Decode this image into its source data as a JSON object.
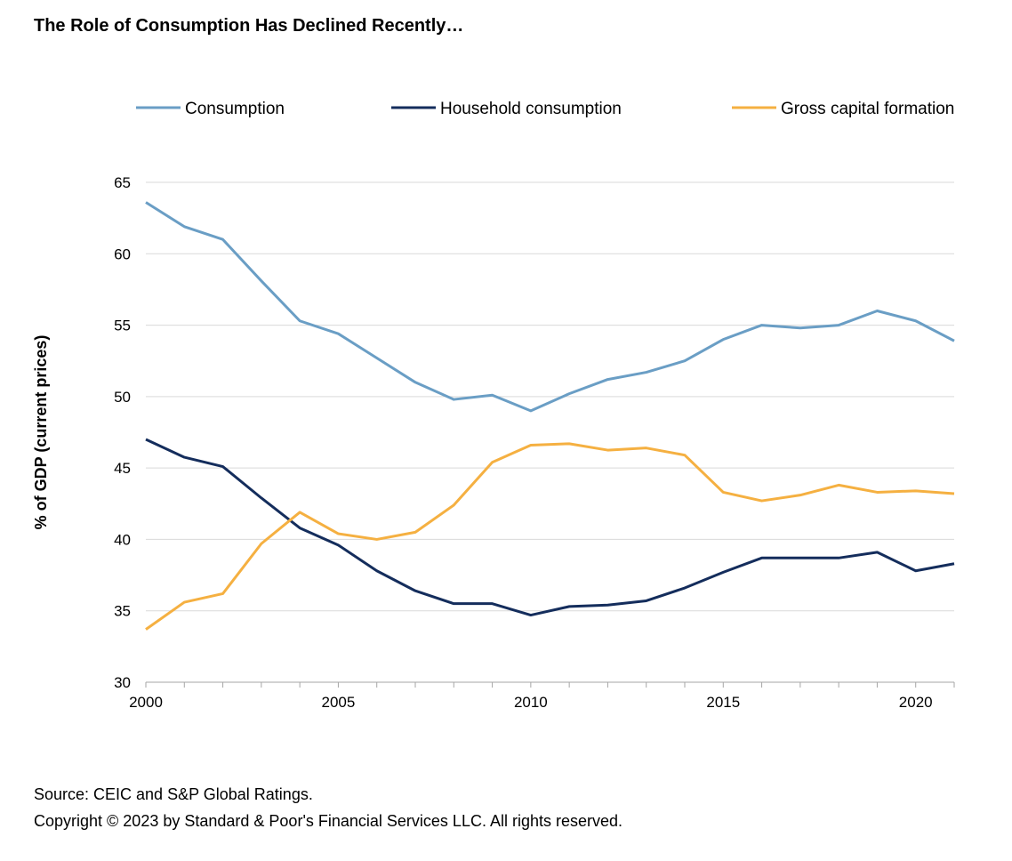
{
  "title": "The Role of Consumption Has Declined Recently…",
  "footer": {
    "source": "Source: CEIC and S&P Global Ratings.",
    "copyright": "Copyright © 2023 by Standard & Poor's Financial Services LLC. All rights reserved."
  },
  "chart_data": {
    "type": "line",
    "title": "The Role of Consumption Has Declined Recently…",
    "xlabel": "",
    "ylabel": "% of GDP (current prices)",
    "ylim": [
      30,
      65
    ],
    "xlim": [
      2000,
      2021
    ],
    "yticks": [
      30,
      35,
      40,
      45,
      50,
      55,
      60,
      65
    ],
    "xticks": [
      2000,
      2005,
      2010,
      2015,
      2020
    ],
    "grid": true,
    "legend": "top",
    "x": [
      2000,
      2001,
      2002,
      2003,
      2004,
      2005,
      2006,
      2007,
      2008,
      2009,
      2010,
      2011,
      2012,
      2013,
      2014,
      2015,
      2016,
      2017,
      2018,
      2019,
      2020,
      2021
    ],
    "series": [
      {
        "name": "Consumption",
        "color": "#6a9ec5",
        "values": [
          63.6,
          61.9,
          61.0,
          58.1,
          55.3,
          54.4,
          52.7,
          51.0,
          49.8,
          50.1,
          49.0,
          50.2,
          51.2,
          51.7,
          52.5,
          54.0,
          55.0,
          54.8,
          55.0,
          56.0,
          55.3,
          53.9
        ]
      },
      {
        "name": "Household consumption",
        "color": "#142d5c",
        "values": [
          47.0,
          45.75,
          45.1,
          42.9,
          40.8,
          39.6,
          37.8,
          36.4,
          35.5,
          35.5,
          34.7,
          35.3,
          35.4,
          35.7,
          36.6,
          37.7,
          38.7,
          38.7,
          38.7,
          39.1,
          37.8,
          38.3
        ]
      },
      {
        "name": "Gross capital formation",
        "color": "#f5b041",
        "values": [
          33.7,
          35.6,
          36.2,
          39.7,
          41.9,
          40.4,
          40.0,
          40.5,
          42.4,
          45.4,
          46.6,
          46.7,
          46.25,
          46.4,
          45.9,
          43.3,
          42.7,
          43.1,
          43.8,
          43.3,
          43.4,
          43.2
        ]
      }
    ]
  }
}
